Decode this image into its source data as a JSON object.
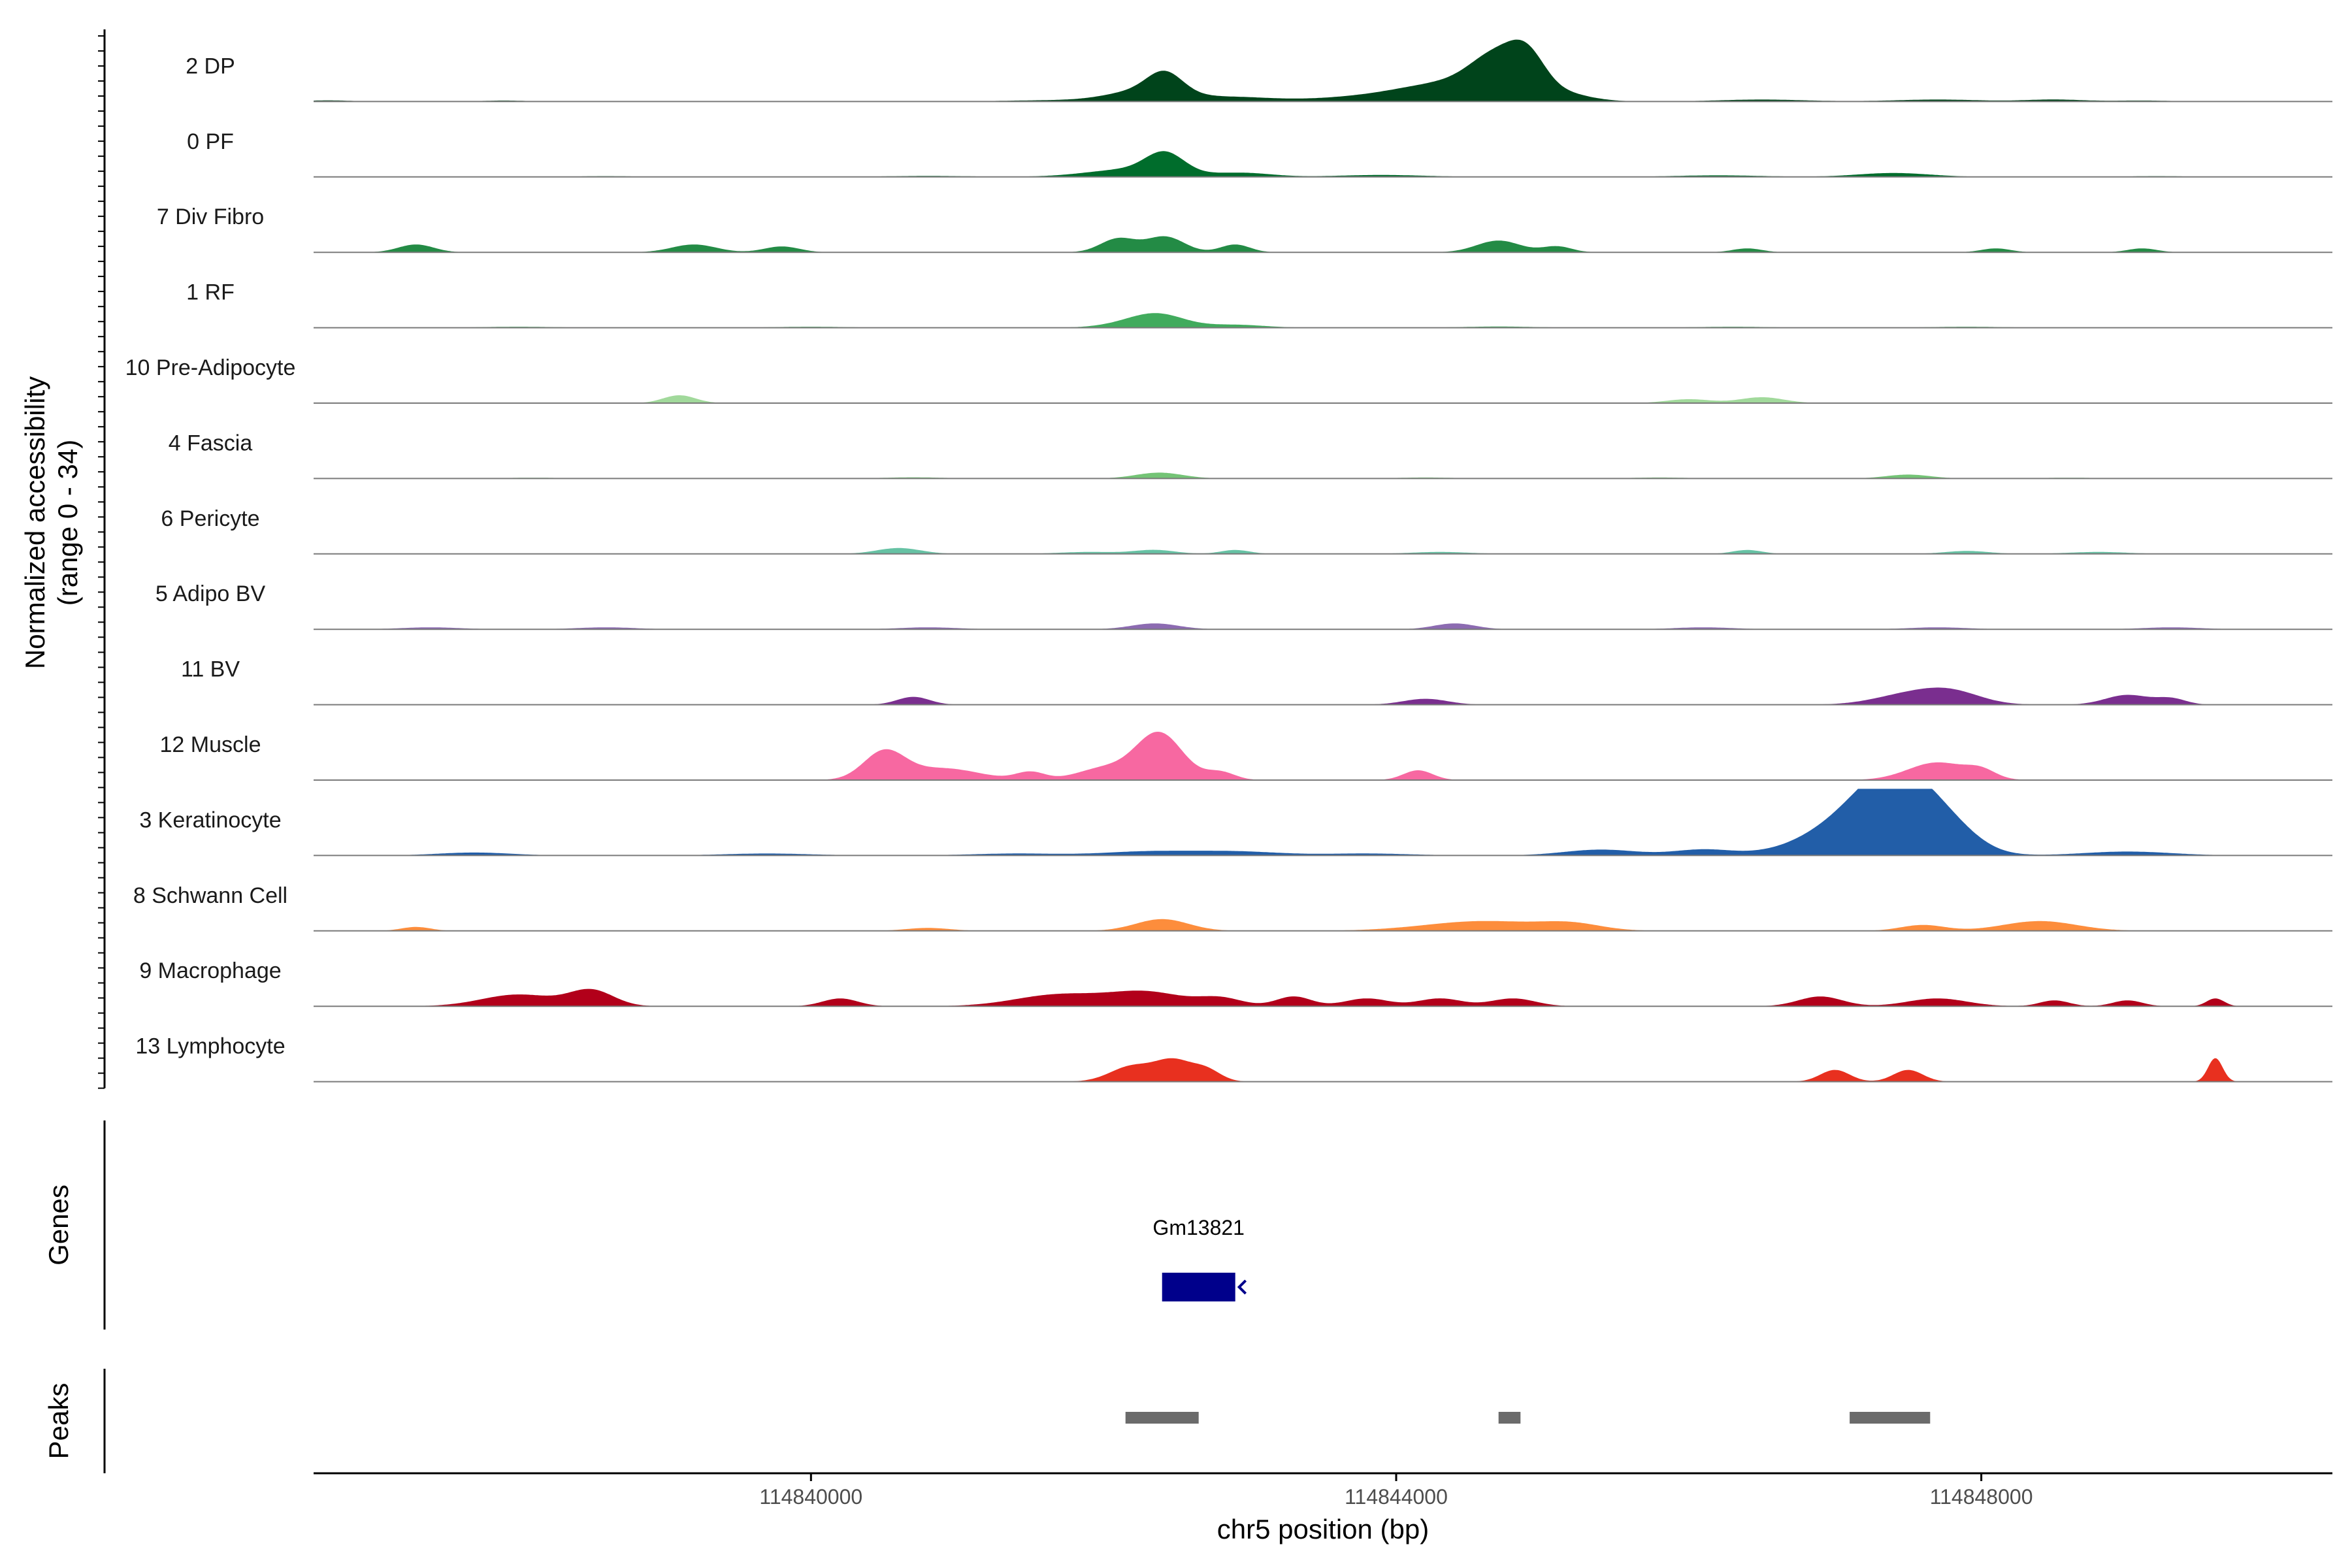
{
  "chart_data": {
    "type": "area",
    "ylabel": "Normalized accessibility",
    "ylabel_sub": "(range 0 - 34)",
    "ylim": [
      0,
      34
    ],
    "xlabel": "chr5 position (bp)",
    "xlim": [
      114836600,
      114850400
    ],
    "x_ticks": [
      {
        "value": 114840000,
        "label": "114840000"
      },
      {
        "value": 114844000,
        "label": "114844000"
      },
      {
        "value": 114848000,
        "label": "114848000"
      }
    ],
    "genes_label": "Genes",
    "peaks_label": "Peaks",
    "tracks": [
      {
        "name": "2 DP",
        "color": "#00441b",
        "peaks": [
          [
            114842300,
            6,
            250
          ],
          [
            114842420,
            10,
            120
          ],
          [
            114842900,
            2,
            250
          ],
          [
            114843800,
            2,
            400
          ],
          [
            114844400,
            9,
            350
          ],
          [
            114844700,
            18,
            180
          ],
          [
            114844900,
            14,
            120
          ],
          [
            114845100,
            4,
            200
          ],
          [
            114846500,
            1,
            300
          ],
          [
            114847700,
            1,
            300
          ],
          [
            114848500,
            1,
            200
          ],
          [
            114836700,
            0.6,
            150
          ],
          [
            114837900,
            0.5,
            150
          ],
          [
            114841600,
            0.6,
            300
          ],
          [
            114849100,
            0.5,
            200
          ]
        ]
      },
      {
        "name": "0 PF",
        "color": "#006d2c",
        "peaks": [
          [
            114842200,
            4,
            300
          ],
          [
            114842420,
            10,
            130
          ],
          [
            114842950,
            2,
            200
          ],
          [
            114843900,
            1,
            300
          ],
          [
            114846200,
            0.8,
            300
          ],
          [
            114847400,
            2,
            250
          ],
          [
            114838600,
            0.4,
            200
          ],
          [
            114840800,
            0.5,
            300
          ],
          [
            114849200,
            0.4,
            200
          ]
        ]
      },
      {
        "name": "7 Div Fibro",
        "color": "#238b45",
        "peaks": [
          [
            114837300,
            4,
            120
          ],
          [
            114839200,
            4,
            150
          ],
          [
            114839800,
            3,
            120
          ],
          [
            114842100,
            7,
            120
          ],
          [
            114842420,
            8,
            130
          ],
          [
            114842900,
            4,
            100
          ],
          [
            114844700,
            6,
            150
          ],
          [
            114845100,
            3,
            100
          ],
          [
            114846400,
            2,
            100
          ],
          [
            114848100,
            2,
            100
          ],
          [
            114849100,
            2,
            100
          ]
        ]
      },
      {
        "name": "1 RF",
        "color": "#41ab5d",
        "peaks": [
          [
            114842380,
            6,
            180
          ],
          [
            114842200,
            2,
            200
          ],
          [
            114842900,
            1.5,
            200
          ],
          [
            114840000,
            0.5,
            250
          ],
          [
            114844700,
            0.6,
            250
          ],
          [
            114847900,
            0.5,
            250
          ],
          [
            114838000,
            0.5,
            250
          ],
          [
            114846300,
            0.5,
            250
          ]
        ]
      },
      {
        "name": "10 Pre-Adipocyte",
        "color": "#a1d99b",
        "peaks": [
          [
            114839100,
            4,
            110
          ],
          [
            114846000,
            2,
            150
          ],
          [
            114846500,
            3,
            150
          ]
        ]
      },
      {
        "name": "4 Fascia",
        "color": "#74c476",
        "peaks": [
          [
            114842380,
            3,
            160
          ],
          [
            114847500,
            2,
            150
          ],
          [
            114840700,
            0.6,
            200
          ],
          [
            114844200,
            0.5,
            200
          ],
          [
            114845800,
            0.5,
            200
          ],
          [
            114838100,
            0.4,
            200
          ],
          [
            114848600,
            0.4,
            200
          ]
        ]
      },
      {
        "name": "6 Pericyte",
        "color": "#66c2a4",
        "peaks": [
          [
            114840600,
            3,
            150
          ],
          [
            114842350,
            2,
            140
          ],
          [
            114842900,
            2,
            100
          ],
          [
            114846400,
            2,
            100
          ],
          [
            114847900,
            1.5,
            150
          ],
          [
            114841900,
            1,
            200
          ],
          [
            114844300,
            1,
            200
          ],
          [
            114848800,
            1,
            200
          ]
        ]
      },
      {
        "name": "5 Adipo BV",
        "color": "#8c6bb1",
        "peaks": [
          [
            114842350,
            3,
            160
          ],
          [
            114844400,
            3,
            140
          ],
          [
            114837400,
            1,
            200
          ],
          [
            114838600,
            1,
            200
          ],
          [
            114840800,
            1,
            200
          ],
          [
            114846100,
            1,
            200
          ],
          [
            114847700,
            1,
            200
          ],
          [
            114849300,
            1,
            200
          ]
        ]
      },
      {
        "name": "11 BV",
        "color": "#7a2e8f",
        "peaks": [
          [
            114840700,
            4,
            110
          ],
          [
            114844200,
            3,
            150
          ],
          [
            114847500,
            5,
            230
          ],
          [
            114847800,
            6,
            200
          ],
          [
            114849000,
            5,
            150
          ],
          [
            114849300,
            3,
            100
          ]
        ]
      },
      {
        "name": "12 Muscle",
        "color": "#f768a1",
        "peaks": [
          [
            114840500,
            14,
            140
          ],
          [
            114840900,
            6,
            250
          ],
          [
            114841500,
            4,
            100
          ],
          [
            114842000,
            6,
            180
          ],
          [
            114842380,
            24,
            160
          ],
          [
            114842800,
            4,
            100
          ],
          [
            114844150,
            5,
            100
          ],
          [
            114847700,
            9,
            200
          ],
          [
            114848000,
            4,
            100
          ]
        ]
      },
      {
        "name": "3 Keratinocyte",
        "color": "#225ea8",
        "peaks": [
          [
            114847200,
            20,
            350
          ],
          [
            114847450,
            28,
            250
          ],
          [
            114847800,
            8,
            200
          ],
          [
            114845400,
            3,
            250
          ],
          [
            114846100,
            3,
            200
          ],
          [
            114842300,
            2,
            300
          ],
          [
            114842900,
            2,
            300
          ],
          [
            114841400,
            1,
            300
          ],
          [
            114837700,
            1.5,
            250
          ],
          [
            114839700,
            1,
            300
          ],
          [
            114843800,
            1,
            300
          ],
          [
            114849000,
            2,
            300
          ]
        ]
      },
      {
        "name": "8 Schwann Cell",
        "color": "#fd8d3c",
        "peaks": [
          [
            114842400,
            6,
            180
          ],
          [
            114844600,
            5,
            400
          ],
          [
            114845200,
            3,
            200
          ],
          [
            114848400,
            5,
            250
          ],
          [
            114847600,
            3,
            150
          ],
          [
            114837300,
            2,
            100
          ],
          [
            114840800,
            1.5,
            150
          ]
        ]
      },
      {
        "name": "9 Macrophage",
        "color": "#b2001a",
        "peaks": [
          [
            114838000,
            6,
            250
          ],
          [
            114838500,
            8,
            150
          ],
          [
            114840200,
            4,
            120
          ],
          [
            114841700,
            6,
            300
          ],
          [
            114842300,
            7,
            250
          ],
          [
            114842800,
            4,
            150
          ],
          [
            114843300,
            5,
            120
          ],
          [
            114843800,
            4,
            150
          ],
          [
            114844300,
            4,
            150
          ],
          [
            114844800,
            4,
            150
          ],
          [
            114846900,
            5,
            150
          ],
          [
            114847700,
            4,
            200
          ],
          [
            114848500,
            3,
            100
          ],
          [
            114849000,
            3,
            100
          ],
          [
            114849600,
            4,
            60
          ]
        ]
      },
      {
        "name": "13 Lymphocyte",
        "color": "#e8301f",
        "peaks": [
          [
            114842200,
            8,
            150
          ],
          [
            114842480,
            10,
            120
          ],
          [
            114842700,
            6,
            100
          ],
          [
            114847000,
            6,
            100
          ],
          [
            114847500,
            6,
            100
          ],
          [
            114849600,
            12,
            50
          ]
        ]
      }
    ],
    "genes": [
      {
        "name": "Gm13821",
        "start": 114842400,
        "end": 114842900,
        "strand": "-",
        "color": "#00008b"
      }
    ],
    "peaks": [
      {
        "start": 114842150,
        "end": 114842650,
        "color": "#6b6b6b"
      },
      {
        "start": 114844700,
        "end": 114844850,
        "color": "#6b6b6b"
      },
      {
        "start": 114847100,
        "end": 114847650,
        "color": "#6b6b6b"
      }
    ]
  }
}
